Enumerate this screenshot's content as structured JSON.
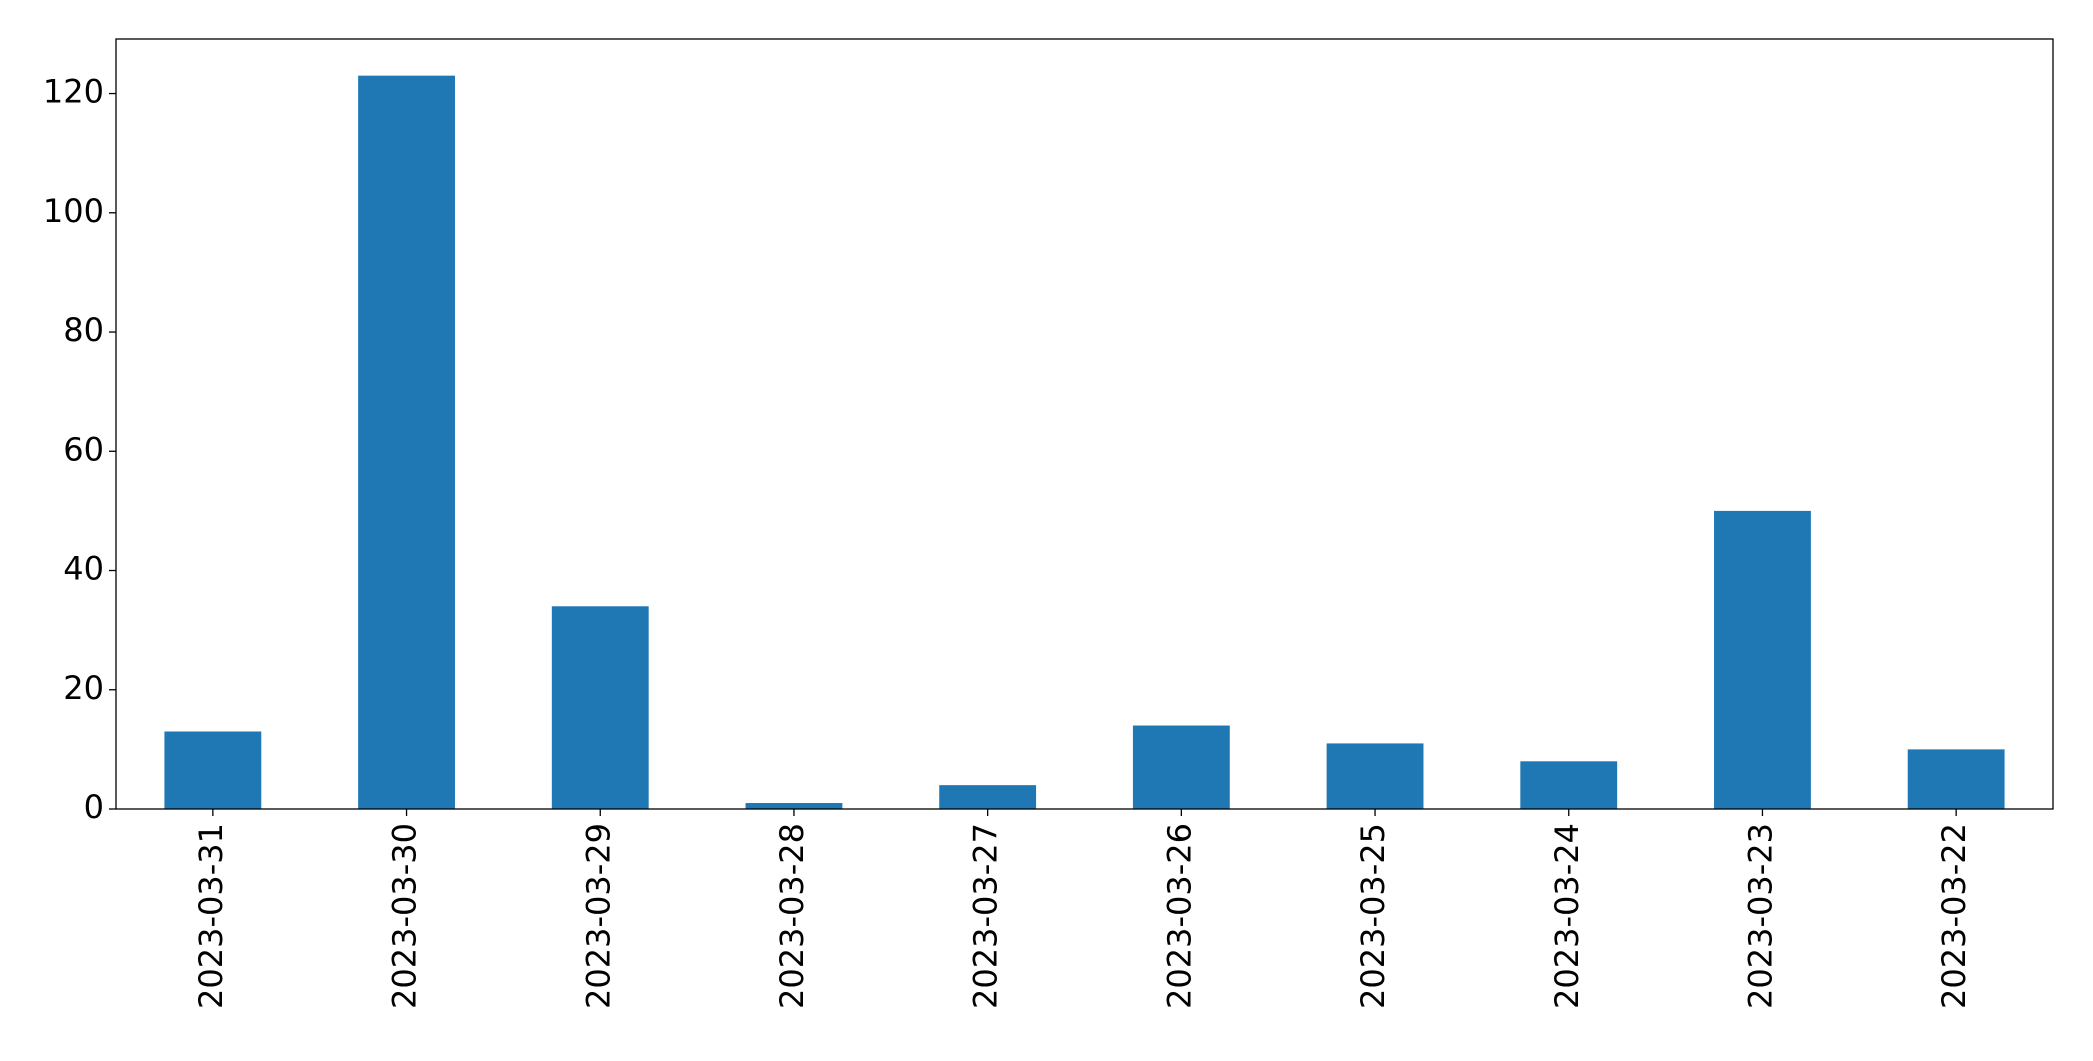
{
  "chart_data": {
    "type": "bar",
    "categories": [
      "2023-03-31",
      "2023-03-30",
      "2023-03-29",
      "2023-03-28",
      "2023-03-27",
      "2023-03-26",
      "2023-03-25",
      "2023-03-24",
      "2023-03-23",
      "2023-03-22"
    ],
    "values": [
      13,
      123,
      34,
      1,
      4,
      14,
      11,
      8,
      50,
      10
    ],
    "color": "#1f77b4",
    "ylim": [
      0,
      129.15
    ],
    "yticks": [
      0,
      20,
      40,
      60,
      80,
      100,
      120
    ],
    "grid": false
  }
}
